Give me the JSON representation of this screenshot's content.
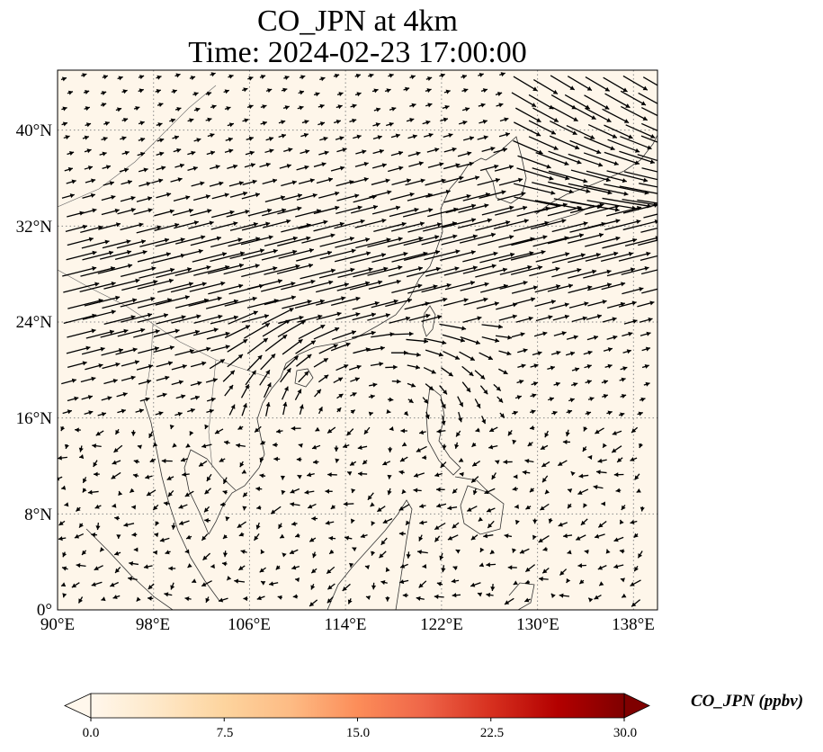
{
  "title": {
    "line1": "CO_JPN at 4km",
    "line2": "Time: 2024-02-23 17:00:00"
  },
  "map": {
    "lon_range": [
      90,
      140
    ],
    "lat_range": [
      0,
      45
    ],
    "background_color": "#fef6ea",
    "coastline_color": "#333333",
    "gridlines": "dotted",
    "overlay": "wind vectors (quiver)",
    "lat_ticks": [
      "0°",
      "8°N",
      "16°N",
      "24°N",
      "32°N",
      "40°N"
    ],
    "lon_ticks": [
      "90°E",
      "98°E",
      "106°E",
      "114°E",
      "122°E",
      "130°E",
      "138°E"
    ]
  },
  "colorbar": {
    "label": "CO_JPN (ppbv)",
    "ticks": [
      "0.0",
      "7.5",
      "15.0",
      "22.5",
      "30.0"
    ],
    "range": [
      0,
      30
    ],
    "colormap": "OrRd",
    "colors": [
      "#fff7ec",
      "#fee8c8",
      "#fdd49e",
      "#fdbb84",
      "#fc8d59",
      "#ef6548",
      "#d7301f",
      "#b30000",
      "#7f0000"
    ],
    "extend": "both"
  }
}
